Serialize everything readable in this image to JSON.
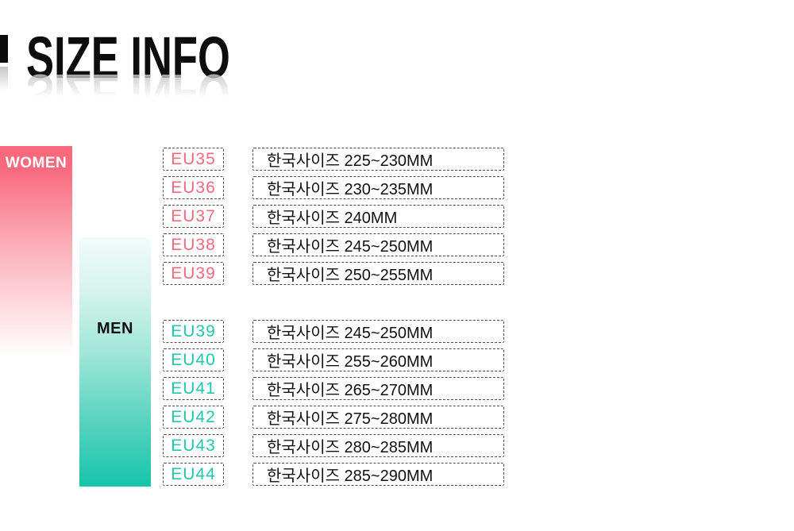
{
  "title": {
    "text": "SIZE INFO"
  },
  "women": {
    "label": "WOMEN",
    "bar_color": "#F8697C",
    "text_color": "#F8697D",
    "rows": [
      {
        "eu": "EU35",
        "kr": "한국사이즈 225~230MM"
      },
      {
        "eu": "EU36",
        "kr": "한국사이즈 230~235MM"
      },
      {
        "eu": "EU37",
        "kr": "한국사이즈 240MM"
      },
      {
        "eu": "EU38",
        "kr": "한국사이즈 245~250MM"
      },
      {
        "eu": "EU39",
        "kr": "한국사이즈 250~255MM"
      }
    ]
  },
  "men": {
    "label": "MEN",
    "bar_color": "#17C4AC",
    "text_color": "#1FC7AF",
    "rows": [
      {
        "eu": "EU39",
        "kr": "한국사이즈 245~250MM"
      },
      {
        "eu": "EU40",
        "kr": "한국사이즈 255~260MM"
      },
      {
        "eu": "EU41",
        "kr": "한국사이즈 265~270MM"
      },
      {
        "eu": "EU42",
        "kr": "한국사이즈 275~280MM"
      },
      {
        "eu": "EU43",
        "kr": "한국사이즈 280~285MM"
      },
      {
        "eu": "EU44",
        "kr": "한국사이즈 285~290MM"
      }
    ]
  }
}
